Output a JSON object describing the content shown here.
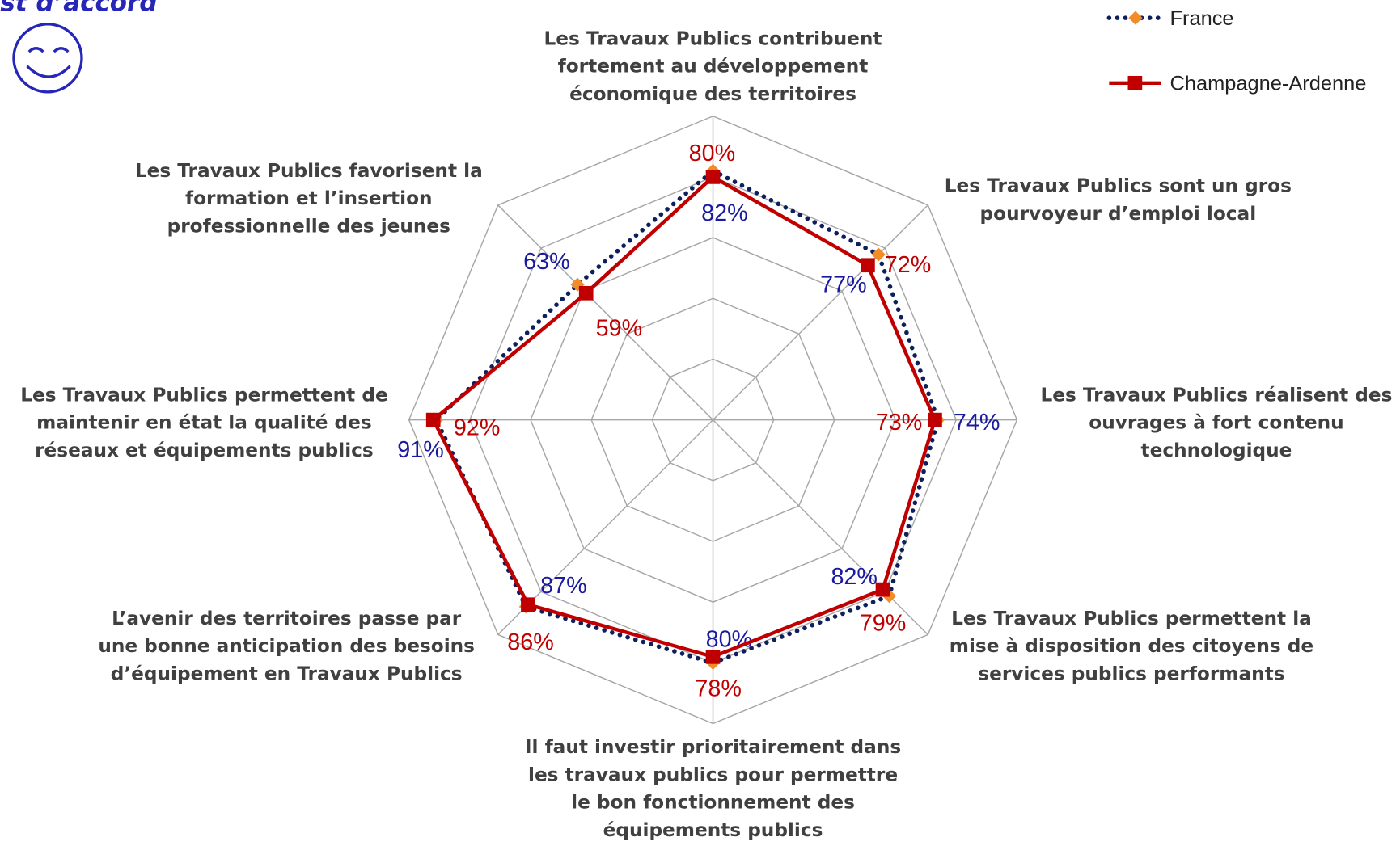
{
  "chart_data": {
    "type": "radar",
    "header": "st d’accord",
    "categories": [
      "Les Travaux Publics contribuent\nfortement au développement\néconomique des territoires",
      "Les Travaux Publics sont un gros\npourvoyeur d’emploi local",
      "Les Travaux Publics réalisent des\nouvrages à fort contenu\ntechnologique",
      "Les Travaux Publics permettent la\nmise à disposition des  citoyens de\nservices publics performants",
      "Il faut investir prioritairement dans\nles travaux publics pour permettre\nle bon fonctionnement  des\néquipements publics",
      "L’avenir des territoires passe par\nune bonne anticipation des besoins\nd’équipement en Travaux Publics",
      "Les Travaux Publics permettent de\nmaintenir en état la qualité des\nréseaux et équipements publics",
      "Les Travaux Publics favorisent la\nformation et l’insertion\nprofessionnelle des jeunes"
    ],
    "series": [
      {
        "name": "France",
        "color": "#0d1f5c",
        "marker_color": "#f28c28",
        "label_color": "#1a1aa0",
        "values": [
          82,
          77,
          74,
          82,
          80,
          87,
          91,
          63
        ],
        "value_labels": [
          "82%",
          "77%",
          "74%",
          "82%",
          "80%",
          "87%",
          "91%",
          "63%"
        ]
      },
      {
        "name": "Champagne-Ardenne",
        "color": "#c00000",
        "marker_color": "#c00000",
        "label_color": "#c00000",
        "values": [
          80,
          72,
          73,
          79,
          78,
          86,
          92,
          59
        ],
        "value_labels": [
          "80%",
          "72%",
          "73%",
          "79%",
          "78%",
          "86%",
          "92%",
          "59%"
        ]
      }
    ],
    "rlim": [
      0,
      100
    ],
    "rticks": [
      0,
      20,
      40,
      60,
      80,
      100
    ],
    "grid": true
  }
}
